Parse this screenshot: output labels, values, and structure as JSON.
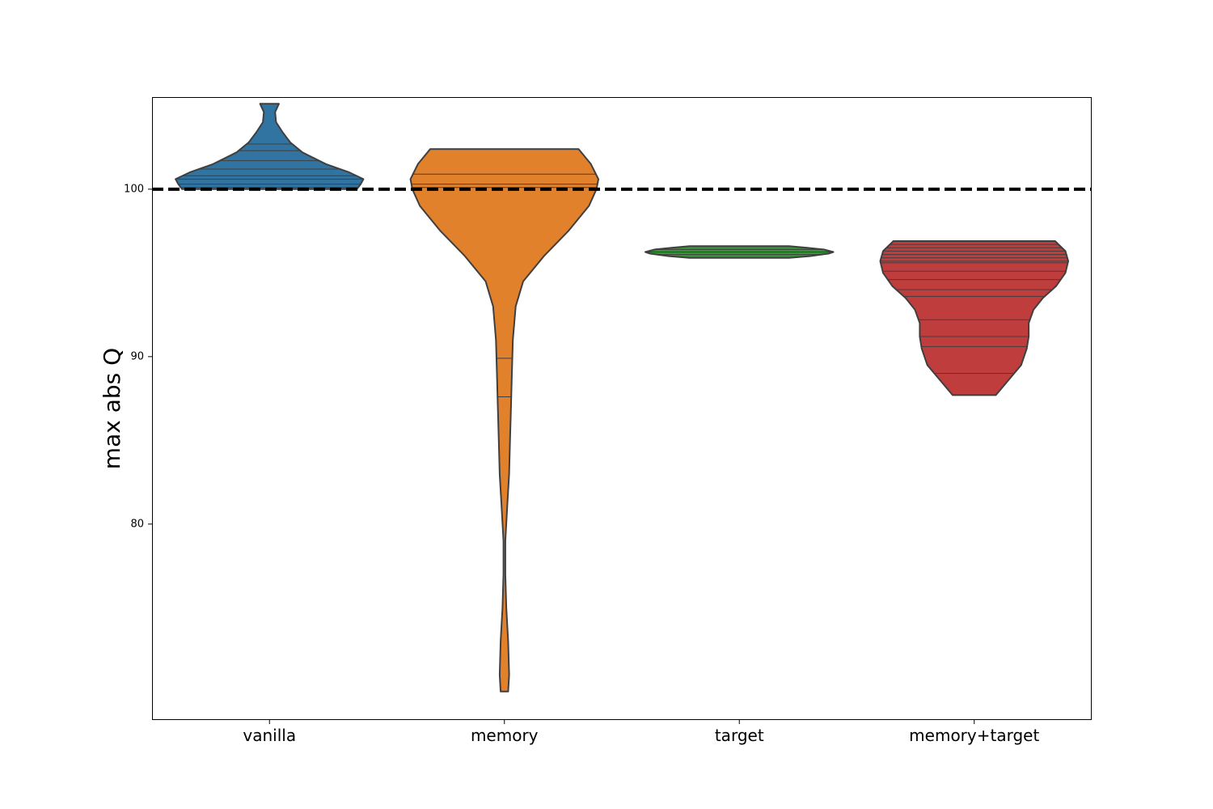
{
  "chart_data": {
    "type": "violin",
    "ylabel": "max abs Q",
    "ylim": [
      68.3,
      105.5
    ],
    "yticks": [
      80,
      90,
      100
    ],
    "grid": false,
    "reference_line": {
      "y": 100,
      "style": "dashed",
      "color": "#000000"
    },
    "categories": [
      "vanilla",
      "memory",
      "target",
      "memory+target"
    ],
    "series": [
      {
        "category": "vanilla",
        "color": "#3274a1",
        "min": 100.0,
        "max": 105.1,
        "profile": [
          [
            100.0,
            0.93
          ],
          [
            100.3,
            0.97
          ],
          [
            100.6,
            1.0
          ],
          [
            101.0,
            0.85
          ],
          [
            101.5,
            0.6
          ],
          [
            102.2,
            0.35
          ],
          [
            102.8,
            0.22
          ],
          [
            103.4,
            0.14
          ],
          [
            104.0,
            0.07
          ],
          [
            104.6,
            0.06
          ],
          [
            105.1,
            0.1
          ]
        ],
        "observations": [
          100.1,
          100.3,
          100.6,
          100.8,
          101.2,
          101.7,
          102.3,
          102.7
        ]
      },
      {
        "category": "memory",
        "color": "#e1812c",
        "min": 70.0,
        "max": 102.4,
        "profile": [
          [
            70.0,
            0.04
          ],
          [
            71.0,
            0.05
          ],
          [
            73.0,
            0.04
          ],
          [
            75.0,
            0.02
          ],
          [
            77.0,
            0.01
          ],
          [
            79.0,
            0.01
          ],
          [
            81.0,
            0.03
          ],
          [
            83.0,
            0.05
          ],
          [
            85.0,
            0.06
          ],
          [
            87.0,
            0.07
          ],
          [
            89.0,
            0.08
          ],
          [
            91.0,
            0.09
          ],
          [
            93.0,
            0.12
          ],
          [
            94.5,
            0.2
          ],
          [
            96.0,
            0.42
          ],
          [
            97.5,
            0.68
          ],
          [
            99.0,
            0.9
          ],
          [
            100.0,
            0.98
          ],
          [
            100.6,
            1.0
          ],
          [
            101.5,
            0.92
          ],
          [
            102.4,
            0.79
          ]
        ],
        "observations": [
          87.6,
          89.9,
          100.1,
          100.3,
          100.9
        ]
      },
      {
        "category": "target",
        "color": "#3a923a",
        "min": 95.9,
        "max": 96.6,
        "profile": [
          [
            95.9,
            0.53
          ],
          [
            96.0,
            0.75
          ],
          [
            96.15,
            0.95
          ],
          [
            96.25,
            1.0
          ],
          [
            96.4,
            0.9
          ],
          [
            96.5,
            0.72
          ],
          [
            96.6,
            0.53
          ]
        ],
        "observations": [
          96.1,
          96.25,
          96.4
        ]
      },
      {
        "category": "memory+target",
        "color": "#c03d3e",
        "min": 87.7,
        "max": 96.9,
        "profile": [
          [
            87.7,
            0.23
          ],
          [
            88.5,
            0.35
          ],
          [
            89.5,
            0.5
          ],
          [
            90.5,
            0.56
          ],
          [
            91.2,
            0.58
          ],
          [
            92.0,
            0.58
          ],
          [
            92.8,
            0.63
          ],
          [
            93.5,
            0.73
          ],
          [
            94.2,
            0.87
          ],
          [
            95.0,
            0.97
          ],
          [
            95.7,
            1.0
          ],
          [
            96.3,
            0.97
          ],
          [
            96.9,
            0.86
          ]
        ],
        "observations": [
          89.0,
          90.6,
          91.2,
          92.2,
          93.6,
          94.0,
          94.6,
          95.1,
          95.6,
          95.7,
          95.9,
          96.1,
          96.3,
          96.5,
          96.7
        ]
      }
    ]
  }
}
